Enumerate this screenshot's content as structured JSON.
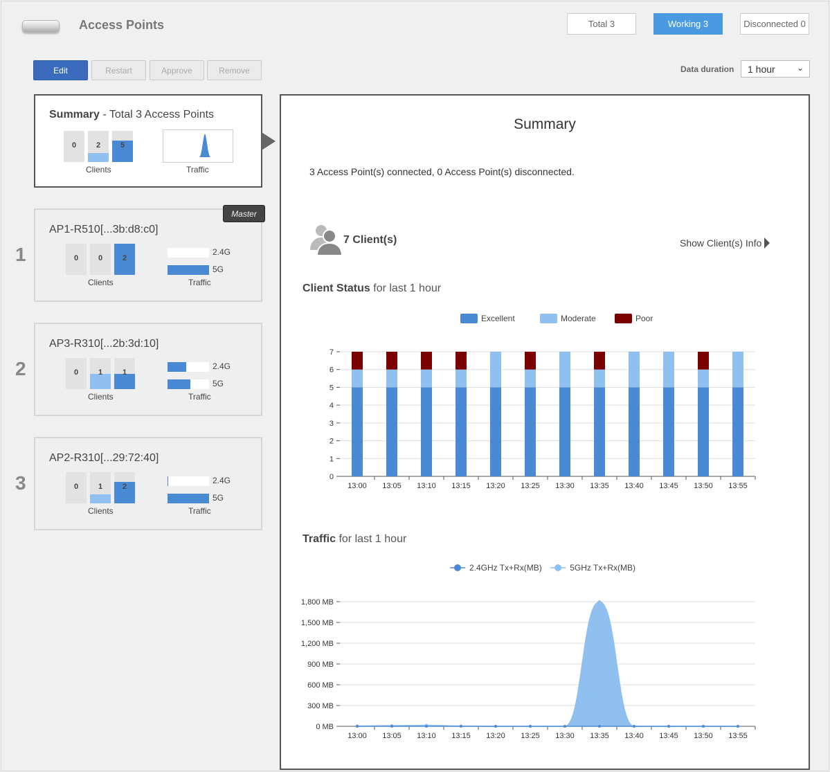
{
  "header": {
    "title": "Access Points",
    "status_buttons": [
      {
        "label": "Total 3",
        "active": false
      },
      {
        "label": "Working 3",
        "active": true
      },
      {
        "label": "Disconnected 0",
        "active": false
      }
    ]
  },
  "toolbar": {
    "edit_label": "Edit",
    "restart_label": "Restart",
    "approve_label": "Approve",
    "remove_label": "Remove",
    "duration_label": "Data duration",
    "duration_value": "1 hour"
  },
  "summary_card": {
    "title_bold": "Summary",
    "title_rest": " - Total 3 Access Points",
    "clients": [
      0,
      2,
      5
    ],
    "clients_label": "Clients",
    "traffic_label": "Traffic"
  },
  "ap_cards": [
    {
      "index": "1",
      "name": "AP1-R510[...3b:d8:c0]",
      "master": true,
      "clients": [
        0,
        0,
        2
      ],
      "traffic_24": 0.0,
      "traffic_5": 1.0
    },
    {
      "index": "2",
      "name": "AP3-R310[...2b:3d:10]",
      "master": false,
      "clients": [
        0,
        1,
        1
      ],
      "traffic_24": 0.45,
      "traffic_5": 0.55
    },
    {
      "index": "3",
      "name": "AP2-R310[...29:72:40]",
      "master": false,
      "clients": [
        0,
        1,
        2
      ],
      "traffic_24": 0.02,
      "traffic_5": 1.0
    }
  ],
  "ap_labels": {
    "master_badge": "Master",
    "clients_label": "Clients",
    "traffic_label": "Traffic",
    "band_24": "2.4G",
    "band_5": "5G"
  },
  "panel": {
    "title": "Summary",
    "summary_text": "3 Access Point(s) connected, 0 Access Point(s) disconnected.",
    "clients_count": "7 Client(s)",
    "show_info_label": "Show Client(s) Info",
    "client_status_title": "Client Status",
    "client_status_suffix": " for last 1 hour",
    "traffic_title": "Traffic",
    "traffic_suffix": " for last 1 hour"
  },
  "colors": {
    "excellent": "#4a8ad4",
    "moderate": "#8fc0f0",
    "poor": "#7a0000",
    "primary_button": "#3a6bbd",
    "active_tab": "#4a9ae1"
  },
  "chart_data": [
    {
      "type": "bar",
      "stacked": true,
      "categories": [
        "13:00",
        "13:05",
        "13:10",
        "13:15",
        "13:20",
        "13:25",
        "13:30",
        "13:35",
        "13:40",
        "13:45",
        "13:50",
        "13:55"
      ],
      "series": [
        {
          "name": "Excellent",
          "color": "#4a8ad4",
          "values": [
            5,
            5,
            5,
            5,
            5,
            5,
            5,
            5,
            5,
            5,
            5,
            5
          ]
        },
        {
          "name": "Moderate",
          "color": "#8fc0f0",
          "values": [
            1,
            1,
            1,
            1,
            2,
            1,
            2,
            1,
            2,
            2,
            1,
            2
          ]
        },
        {
          "name": "Poor",
          "color": "#7a0000",
          "values": [
            1,
            1,
            1,
            1,
            0,
            1,
            0,
            1,
            0,
            0,
            1,
            0
          ]
        }
      ],
      "yticks": [
        "0",
        "1",
        "2",
        "3",
        "4",
        "5",
        "6",
        "7"
      ],
      "ylim": [
        0,
        7
      ],
      "legend": "top-center",
      "grid": true
    },
    {
      "type": "area",
      "categories": [
        "13:00",
        "13:05",
        "13:10",
        "13:15",
        "13:20",
        "13:25",
        "13:30",
        "13:35",
        "13:40",
        "13:45",
        "13:50",
        "13:55"
      ],
      "series": [
        {
          "name": "2.4GHz Tx+Rx(MB)",
          "color": "#4a8ad4",
          "values": [
            0,
            0,
            0,
            0,
            0,
            0,
            0,
            0,
            0,
            0,
            0,
            0
          ]
        },
        {
          "name": "5GHz Tx+Rx(MB)",
          "color": "#8fc0f0",
          "values": [
            5,
            10,
            15,
            5,
            0,
            0,
            0,
            1800,
            0,
            0,
            0,
            0
          ]
        }
      ],
      "yticks": [
        "0 MB",
        "300 MB",
        "600 MB",
        "900 MB",
        "1,200 MB",
        "1,500 MB",
        "1,800 MB"
      ],
      "ylim": [
        0,
        1800
      ],
      "legend": "top-center",
      "grid": true
    }
  ]
}
